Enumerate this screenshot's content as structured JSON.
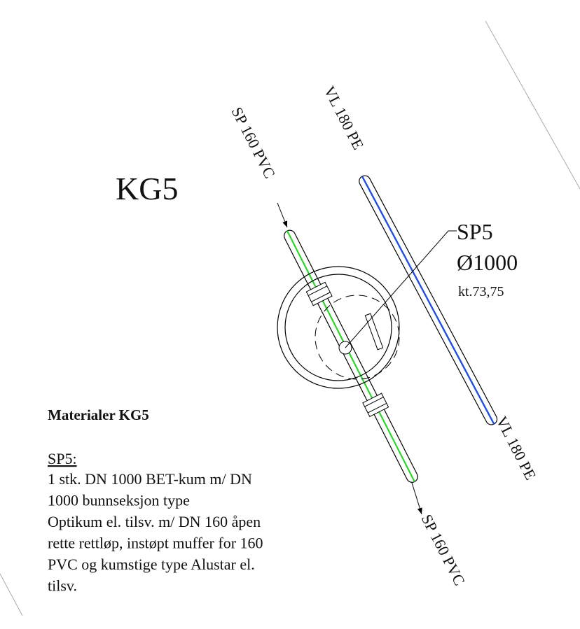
{
  "drawing_title": "KG5",
  "pipe_labels": {
    "sp_top": "SP 160 PVC",
    "vl_top": "VL 180 PE",
    "vl_bottom": "VL 180 PE",
    "sp_bottom": "SP 160 PVC"
  },
  "manhole": {
    "name": "SP5",
    "diameter": "Ø1000",
    "level": "kt.73,75"
  },
  "materials": {
    "title": "Materialer KG5",
    "item_heading": "SP5:",
    "lines": [
      "1 stk. DN 1000 BET-kum m/ DN",
      "1000 bunnseksjon type",
      "Optikum el. tilsv. m/ DN 160 åpen",
      "rette rettløp, instøpt muffer for 160",
      "PVC og kumstige type Alustar el.",
      "tilsv."
    ]
  }
}
